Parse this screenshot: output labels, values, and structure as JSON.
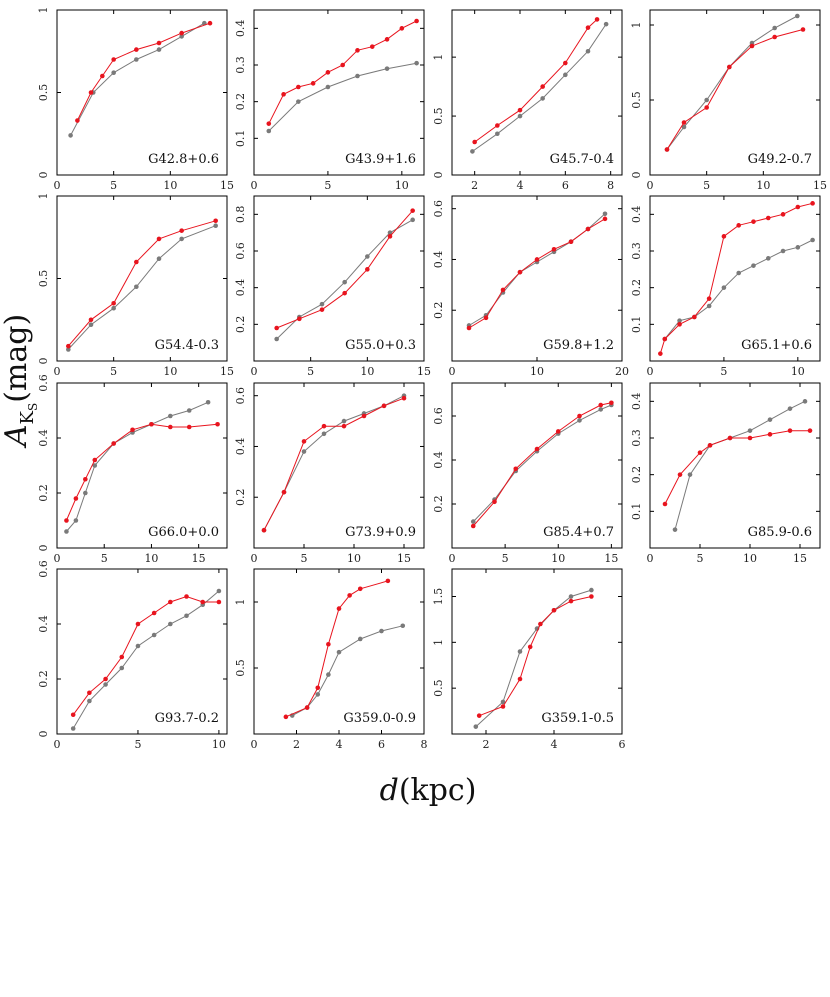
{
  "figure": {
    "ylabel_main": "A",
    "ylabel_sub": "K",
    "ylabel_subsub": "S",
    "ylabel_unit": "(mag)",
    "xlabel_main": "d",
    "xlabel_unit": "(kpc)"
  },
  "colors": {
    "red": "#e8141e",
    "gray": "#7a7a7a"
  },
  "chart_data": [
    {
      "label": "G42.8+0.6",
      "type": "scatter",
      "xlim": [
        0,
        15
      ],
      "ylim": [
        0,
        1
      ],
      "xticks": [
        "0",
        "5",
        "10",
        "15"
      ],
      "yticks": [
        "0",
        "0.5",
        "1"
      ],
      "series": [
        {
          "name": "gray",
          "x": [
            1.2,
            3.2,
            5,
            7,
            9,
            11,
            13
          ],
          "y": [
            0.24,
            0.5,
            0.62,
            0.7,
            0.76,
            0.84,
            0.92
          ]
        },
        {
          "name": "red",
          "x": [
            1.8,
            3,
            4,
            5,
            7,
            9,
            11,
            13.5
          ],
          "y": [
            0.33,
            0.5,
            0.6,
            0.7,
            0.76,
            0.8,
            0.86,
            0.92
          ]
        }
      ]
    },
    {
      "label": "G43.9+1.6",
      "type": "scatter",
      "xlim": [
        0,
        11.5
      ],
      "ylim": [
        0,
        0.45
      ],
      "xticks": [
        "0",
        "5",
        "10"
      ],
      "yticks": [
        "0.1",
        "0.2",
        "0.3",
        "0.4"
      ],
      "series": [
        {
          "name": "gray",
          "x": [
            1,
            3,
            5,
            7,
            9,
            11
          ],
          "y": [
            0.12,
            0.2,
            0.24,
            0.27,
            0.29,
            0.305
          ]
        },
        {
          "name": "red",
          "x": [
            1,
            2,
            3,
            4,
            5,
            6,
            7,
            8,
            9,
            10,
            11
          ],
          "y": [
            0.14,
            0.22,
            0.24,
            0.25,
            0.28,
            0.3,
            0.34,
            0.35,
            0.37,
            0.4,
            0.42
          ]
        }
      ]
    },
    {
      "label": "G45.7-0.4",
      "type": "scatter",
      "xlim": [
        1,
        8.5
      ],
      "ylim": [
        0,
        1.4
      ],
      "xticks": [
        "2",
        "4",
        "6",
        "8"
      ],
      "yticks": [
        "0",
        "0.5",
        "1"
      ],
      "series": [
        {
          "name": "gray",
          "x": [
            1.9,
            3,
            4,
            5,
            6,
            7,
            7.8
          ],
          "y": [
            0.2,
            0.35,
            0.5,
            0.65,
            0.85,
            1.05,
            1.28
          ]
        },
        {
          "name": "red",
          "x": [
            2,
            3,
            4,
            5,
            6,
            7,
            7.4
          ],
          "y": [
            0.28,
            0.42,
            0.55,
            0.75,
            0.95,
            1.25,
            1.32
          ]
        }
      ]
    },
    {
      "label": "G49.2-0.7",
      "type": "scatter",
      "xlim": [
        0,
        15
      ],
      "ylim": [
        0,
        1.1
      ],
      "xticks": [
        "0",
        "5",
        "10",
        "15"
      ],
      "yticks": [
        "0",
        "0.5",
        "1"
      ],
      "series": [
        {
          "name": "gray",
          "x": [
            1.5,
            3,
            5,
            7,
            9,
            11,
            13
          ],
          "y": [
            0.17,
            0.32,
            0.5,
            0.72,
            0.88,
            0.98,
            1.06
          ]
        },
        {
          "name": "red",
          "x": [
            1.5,
            3,
            5,
            7,
            9,
            11,
            13.5
          ],
          "y": [
            0.17,
            0.35,
            0.45,
            0.72,
            0.86,
            0.92,
            0.97
          ]
        }
      ]
    },
    {
      "label": "G54.4-0.3",
      "type": "scatter",
      "xlim": [
        0,
        15
      ],
      "ylim": [
        0,
        1
      ],
      "xticks": [
        "0",
        "5",
        "10",
        "15"
      ],
      "yticks": [
        "0",
        "0.5",
        "1"
      ],
      "series": [
        {
          "name": "gray",
          "x": [
            1,
            3,
            5,
            7,
            9,
            11,
            14
          ],
          "y": [
            0.07,
            0.22,
            0.32,
            0.45,
            0.62,
            0.74,
            0.82
          ]
        },
        {
          "name": "red",
          "x": [
            1,
            3,
            5,
            7,
            9,
            11,
            14
          ],
          "y": [
            0.09,
            0.25,
            0.35,
            0.6,
            0.74,
            0.79,
            0.85
          ]
        }
      ]
    },
    {
      "label": "G55.0+0.3",
      "type": "scatter",
      "xlim": [
        0,
        15
      ],
      "ylim": [
        0,
        0.9
      ],
      "xticks": [
        "0",
        "5",
        "10",
        "15"
      ],
      "yticks": [
        "0.2",
        "0.4",
        "0.6",
        "0.8"
      ],
      "series": [
        {
          "name": "gray",
          "x": [
            2,
            4,
            6,
            8,
            10,
            12,
            14
          ],
          "y": [
            0.12,
            0.24,
            0.31,
            0.43,
            0.57,
            0.7,
            0.77
          ]
        },
        {
          "name": "red",
          "x": [
            2,
            4,
            6,
            8,
            10,
            12,
            14
          ],
          "y": [
            0.18,
            0.23,
            0.28,
            0.37,
            0.5,
            0.68,
            0.82
          ]
        }
      ]
    },
    {
      "label": "G59.8+1.2",
      "type": "scatter",
      "xlim": [
        0,
        20
      ],
      "ylim": [
        0,
        0.65
      ],
      "xticks": [
        "0",
        "10",
        "20"
      ],
      "yticks": [
        "0.2",
        "0.4",
        "0.6"
      ],
      "series": [
        {
          "name": "gray",
          "x": [
            2,
            4,
            6,
            8,
            10,
            12,
            14,
            16,
            18
          ],
          "y": [
            0.14,
            0.18,
            0.27,
            0.35,
            0.39,
            0.43,
            0.47,
            0.52,
            0.58
          ]
        },
        {
          "name": "red",
          "x": [
            2,
            4,
            6,
            8,
            10,
            12,
            14,
            16,
            18
          ],
          "y": [
            0.13,
            0.17,
            0.28,
            0.35,
            0.4,
            0.44,
            0.47,
            0.52,
            0.56
          ]
        }
      ]
    },
    {
      "label": "G65.1+0.6",
      "type": "scatter",
      "xlim": [
        0,
        11.5
      ],
      "ylim": [
        0,
        0.45
      ],
      "xticks": [
        "0",
        "5",
        "10"
      ],
      "yticks": [
        "0.1",
        "0.2",
        "0.3",
        "0.4"
      ],
      "series": [
        {
          "name": "gray",
          "x": [
            1,
            2,
            3,
            4,
            5,
            6,
            7,
            8,
            9,
            10,
            11
          ],
          "y": [
            0.06,
            0.11,
            0.12,
            0.15,
            0.2,
            0.24,
            0.26,
            0.28,
            0.3,
            0.31,
            0.33
          ]
        },
        {
          "name": "red",
          "x": [
            0.7,
            1,
            2,
            3,
            4,
            5,
            6,
            7,
            8,
            9,
            10,
            11
          ],
          "y": [
            0.02,
            0.06,
            0.1,
            0.12,
            0.17,
            0.34,
            0.37,
            0.38,
            0.39,
            0.4,
            0.42,
            0.43
          ]
        }
      ]
    },
    {
      "label": "G66.0+0.0",
      "type": "scatter",
      "xlim": [
        0,
        18
      ],
      "ylim": [
        0,
        0.6
      ],
      "xticks": [
        "0",
        "5",
        "10",
        "15"
      ],
      "yticks": [
        "0",
        "0.2",
        "0.4",
        "0.6"
      ],
      "series": [
        {
          "name": "gray",
          "x": [
            1,
            2,
            3,
            4,
            6,
            8,
            10,
            12,
            14,
            16
          ],
          "y": [
            0.06,
            0.1,
            0.2,
            0.3,
            0.38,
            0.42,
            0.45,
            0.48,
            0.5,
            0.53
          ]
        },
        {
          "name": "red",
          "x": [
            1,
            2,
            3,
            4,
            6,
            8,
            10,
            12,
            14,
            17
          ],
          "y": [
            0.1,
            0.18,
            0.25,
            0.32,
            0.38,
            0.43,
            0.45,
            0.44,
            0.44,
            0.45
          ]
        }
      ]
    },
    {
      "label": "G73.9+0.9",
      "type": "scatter",
      "xlim": [
        0,
        17
      ],
      "ylim": [
        0,
        0.65
      ],
      "xticks": [
        "0",
        "5",
        "10",
        "15"
      ],
      "yticks": [
        "0.2",
        "0.4",
        "0.6"
      ],
      "series": [
        {
          "name": "gray",
          "x": [
            1,
            3,
            5,
            7,
            9,
            11,
            13,
            15
          ],
          "y": [
            0.07,
            0.22,
            0.38,
            0.45,
            0.5,
            0.53,
            0.56,
            0.6
          ]
        },
        {
          "name": "red",
          "x": [
            1,
            3,
            5,
            7,
            9,
            11,
            13,
            15
          ],
          "y": [
            0.07,
            0.22,
            0.42,
            0.48,
            0.48,
            0.52,
            0.56,
            0.59
          ]
        }
      ]
    },
    {
      "label": "G85.4+0.7",
      "type": "scatter",
      "xlim": [
        0,
        16
      ],
      "ylim": [
        0,
        0.75
      ],
      "xticks": [
        "0",
        "5",
        "10",
        "15"
      ],
      "yticks": [
        "0.2",
        "0.4",
        "0.6"
      ],
      "series": [
        {
          "name": "gray",
          "x": [
            2,
            4,
            6,
            8,
            10,
            12,
            14,
            15
          ],
          "y": [
            0.12,
            0.22,
            0.35,
            0.44,
            0.52,
            0.58,
            0.63,
            0.65
          ]
        },
        {
          "name": "red",
          "x": [
            2,
            4,
            6,
            8,
            10,
            12,
            14,
            15
          ],
          "y": [
            0.1,
            0.21,
            0.36,
            0.45,
            0.53,
            0.6,
            0.65,
            0.66
          ]
        }
      ]
    },
    {
      "label": "G85.9-0.6",
      "type": "scatter",
      "xlim": [
        0,
        17
      ],
      "ylim": [
        0,
        0.45
      ],
      "xticks": [
        "0",
        "5",
        "10",
        "15"
      ],
      "yticks": [
        "0.1",
        "0.2",
        "0.3",
        "0.4"
      ],
      "series": [
        {
          "name": "gray",
          "x": [
            2.5,
            4,
            6,
            8,
            10,
            12,
            14,
            15.5
          ],
          "y": [
            0.05,
            0.2,
            0.28,
            0.3,
            0.32,
            0.35,
            0.38,
            0.4
          ]
        },
        {
          "name": "red",
          "x": [
            1.5,
            3,
            5,
            6,
            8,
            10,
            12,
            14,
            16
          ],
          "y": [
            0.12,
            0.2,
            0.26,
            0.28,
            0.3,
            0.3,
            0.31,
            0.32,
            0.32
          ]
        }
      ]
    },
    {
      "label": "G93.7-0.2",
      "type": "scatter",
      "xlim": [
        0,
        10.5
      ],
      "ylim": [
        0,
        0.6
      ],
      "xticks": [
        "0",
        "5",
        "10"
      ],
      "yticks": [
        "0",
        "0.2",
        "0.4",
        "0.6"
      ],
      "series": [
        {
          "name": "gray",
          "x": [
            1,
            2,
            3,
            4,
            5,
            6,
            7,
            8,
            9,
            10
          ],
          "y": [
            0.02,
            0.12,
            0.18,
            0.24,
            0.32,
            0.36,
            0.4,
            0.43,
            0.47,
            0.52
          ]
        },
        {
          "name": "red",
          "x": [
            1,
            2,
            3,
            4,
            5,
            6,
            7,
            8,
            9,
            10
          ],
          "y": [
            0.07,
            0.15,
            0.2,
            0.28,
            0.4,
            0.44,
            0.48,
            0.5,
            0.48,
            0.48
          ]
        }
      ]
    },
    {
      "label": "G359.0-0.9",
      "type": "scatter",
      "xlim": [
        0,
        8
      ],
      "ylim": [
        0,
        1.25
      ],
      "xticks": [
        "0",
        "2",
        "4",
        "6",
        "8"
      ],
      "yticks": [
        "0.5",
        "1"
      ],
      "series": [
        {
          "name": "gray",
          "x": [
            1.8,
            2.5,
            3,
            3.5,
            4,
            5,
            6,
            7
          ],
          "y": [
            0.14,
            0.2,
            0.3,
            0.45,
            0.62,
            0.72,
            0.78,
            0.82
          ]
        },
        {
          "name": "red",
          "x": [
            1.5,
            2.5,
            3,
            3.5,
            4,
            4.5,
            5,
            6.3
          ],
          "y": [
            0.13,
            0.2,
            0.35,
            0.68,
            0.95,
            1.05,
            1.1,
            1.16
          ]
        }
      ]
    },
    {
      "label": "G359.1-0.5",
      "type": "scatter",
      "xlim": [
        1,
        6
      ],
      "ylim": [
        0,
        1.8
      ],
      "xticks": [
        "2",
        "4",
        "6"
      ],
      "yticks": [
        "0.5",
        "1",
        "1.5"
      ],
      "series": [
        {
          "name": "gray",
          "x": [
            1.7,
            2.5,
            3,
            3.5,
            4,
            4.5,
            5.1
          ],
          "y": [
            0.08,
            0.35,
            0.9,
            1.15,
            1.35,
            1.5,
            1.57
          ]
        },
        {
          "name": "red",
          "x": [
            1.8,
            2.5,
            3,
            3.3,
            3.6,
            4,
            4.5,
            5.1
          ],
          "y": [
            0.2,
            0.3,
            0.6,
            0.95,
            1.2,
            1.35,
            1.45,
            1.5
          ]
        }
      ]
    }
  ]
}
